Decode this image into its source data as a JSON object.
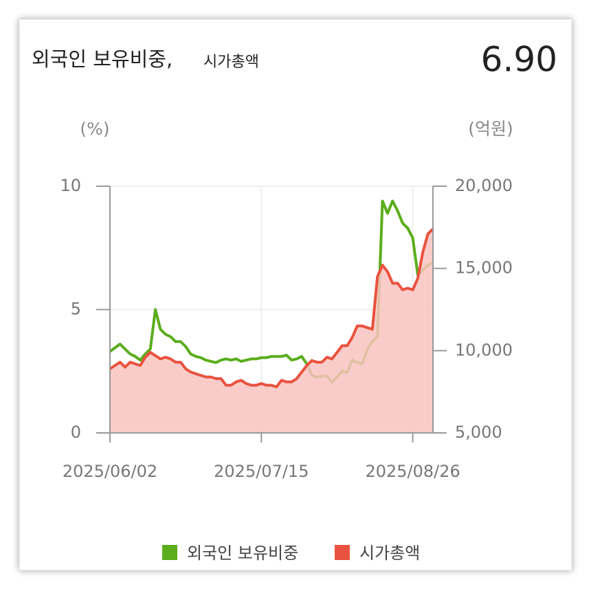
{
  "chart_data": {
    "type": "line",
    "title": "외국인 보유비중,",
    "subtitle": "시가총액",
    "current_value": "6.90",
    "y_label": "(%)",
    "y2_label": "(억원)",
    "categories": [
      "2025/06/02",
      null,
      null,
      null,
      null,
      null,
      null,
      null,
      null,
      null,
      null,
      null,
      null,
      null,
      null,
      null,
      null,
      null,
      null,
      null,
      null,
      null,
      null,
      null,
      null,
      null,
      null,
      null,
      null,
      null,
      "2025/07/15",
      null,
      null,
      null,
      null,
      null,
      null,
      null,
      null,
      null,
      null,
      null,
      null,
      null,
      null,
      null,
      null,
      null,
      null,
      null,
      null,
      null,
      null,
      null,
      null,
      null,
      null,
      null,
      null,
      null,
      "2025/08/26",
      null,
      null,
      null,
      null
    ],
    "series": [
      {
        "name": "외국인 보유비중",
        "color": "#5aad1c",
        "axis": "y",
        "values": [
          3.3,
          3.45,
          3.6,
          3.4,
          3.2,
          3.1,
          2.95,
          3.2,
          3.4,
          5.0,
          4.2,
          4.0,
          3.9,
          3.7,
          3.7,
          3.5,
          3.2,
          3.1,
          3.05,
          2.95,
          2.9,
          2.85,
          2.95,
          3.0,
          2.95,
          3.0,
          2.9,
          2.95,
          3.0,
          3.0,
          3.05,
          3.05,
          3.1,
          3.1,
          3.1,
          3.15,
          2.95,
          3.0,
          3.1,
          2.8,
          2.35,
          2.25,
          2.3,
          2.3,
          2.05,
          2.25,
          2.5,
          2.45,
          2.95,
          2.85,
          2.8,
          3.4,
          3.7,
          3.9,
          9.4,
          8.9,
          9.4,
          9.0,
          8.5,
          8.3,
          7.9,
          6.4,
          6.6,
          6.8,
          6.9
        ]
      },
      {
        "name": "시가총액",
        "color": "#e9523f",
        "axis": "y2",
        "area_color": "#f9c3bf",
        "values": [
          8900,
          9100,
          9300,
          9000,
          9300,
          9200,
          9100,
          9600,
          9900,
          9700,
          9500,
          9600,
          9500,
          9300,
          9300,
          8900,
          8700,
          8600,
          8500,
          8400,
          8400,
          8300,
          8300,
          7900,
          7900,
          8100,
          8200,
          8000,
          7900,
          7900,
          8000,
          7900,
          7900,
          7800,
          8200,
          8100,
          8100,
          8300,
          8700,
          9100,
          9400,
          9300,
          9300,
          9600,
          9500,
          9900,
          10300,
          10300,
          10800,
          11500,
          11500,
          11400,
          11300,
          14500,
          15200,
          14800,
          14100,
          14100,
          13700,
          13800,
          13700,
          14400,
          16000,
          17100,
          17400
        ]
      }
    ],
    "ylim": [
      0,
      10
    ],
    "yticks": [
      0,
      5,
      10
    ],
    "y2lim": [
      5000,
      20000
    ],
    "y2ticks": [
      {
        "value": 5000,
        "label": "5,000"
      },
      {
        "value": 10000,
        "label": "10,000"
      },
      {
        "value": 15000,
        "label": "15,000"
      },
      {
        "value": 20000,
        "label": "20,000"
      }
    ],
    "grid": true
  }
}
